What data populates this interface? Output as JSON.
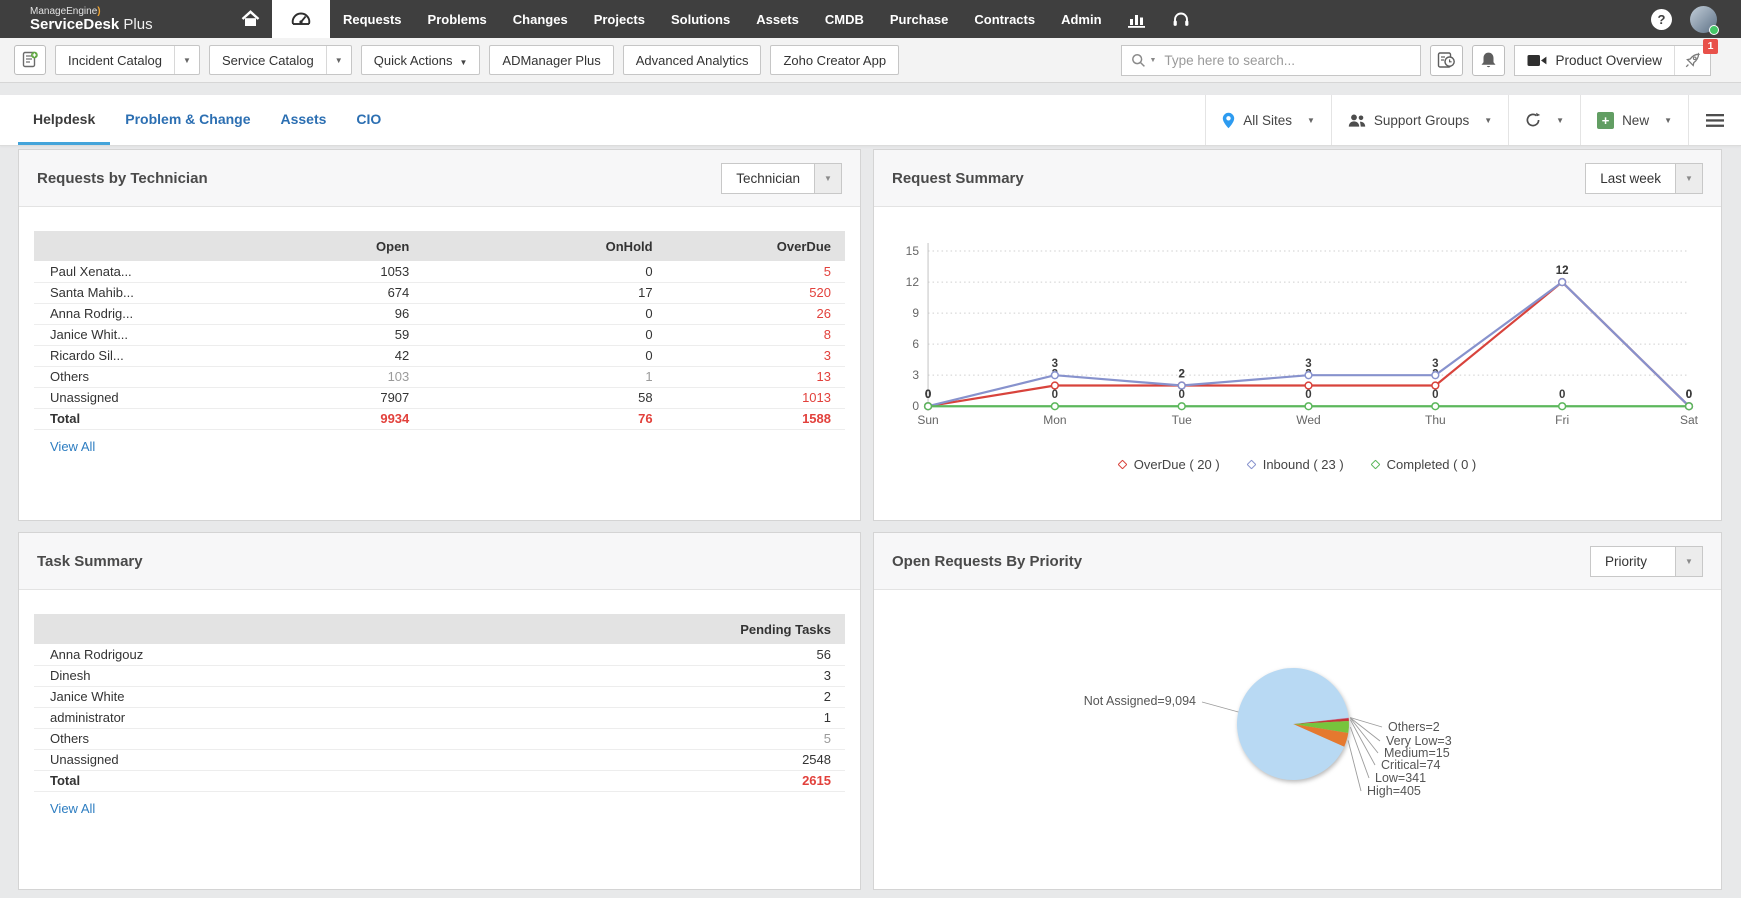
{
  "topnav": {
    "logo_manageengine": "ManageEngine",
    "logo_product_bold": "ServiceDesk",
    "logo_product_light": "Plus",
    "items": [
      "Requests",
      "Problems",
      "Changes",
      "Projects",
      "Solutions",
      "Assets",
      "CMDB",
      "Purchase",
      "Contracts",
      "Admin"
    ],
    "help_label": "?"
  },
  "toolbar": {
    "incident_catalog_label": "Incident Catalog",
    "service_catalog_label": "Service Catalog",
    "quick_actions_label": "Quick Actions",
    "admanager_label": "ADManager Plus",
    "advanced_analytics_label": "Advanced Analytics",
    "zoho_creator_label": "Zoho Creator App",
    "search_placeholder": "Type here to search...",
    "product_overview_label": "Product Overview",
    "notification_badge": "1"
  },
  "tabbar": {
    "tabs": [
      {
        "label": "Helpdesk",
        "active": true
      },
      {
        "label": "Problem & Change",
        "active": false
      },
      {
        "label": "Assets",
        "active": false
      },
      {
        "label": "CIO",
        "active": false
      }
    ],
    "all_sites_label": "All Sites",
    "support_groups_label": "Support Groups",
    "new_label": "New",
    "new_plus": "+"
  },
  "requests_by_technician": {
    "title": "Requests by Technician",
    "filter_value": "Technician",
    "columns": [
      "Open",
      "OnHold",
      "OverDue"
    ],
    "rows": [
      {
        "name": "Paul Xenata...",
        "open": "1053",
        "onhold": "0",
        "overdue": "5",
        "muted": false
      },
      {
        "name": "Santa Mahib...",
        "open": "674",
        "onhold": "17",
        "overdue": "520",
        "muted": false
      },
      {
        "name": "Anna Rodrig...",
        "open": "96",
        "onhold": "0",
        "overdue": "26",
        "muted": false
      },
      {
        "name": "Janice Whit...",
        "open": "59",
        "onhold": "0",
        "overdue": "8",
        "muted": false
      },
      {
        "name": "Ricardo Sil...",
        "open": "42",
        "onhold": "0",
        "overdue": "3",
        "muted": false
      },
      {
        "name": "Others",
        "open": "103",
        "onhold": "1",
        "overdue": "13",
        "muted": true
      },
      {
        "name": "Unassigned",
        "open": "7907",
        "onhold": "58",
        "overdue": "1013",
        "muted": false
      }
    ],
    "total_row": {
      "name": "Total",
      "open": "9934",
      "onhold": "76",
      "overdue": "1588"
    },
    "view_all_label": "View All"
  },
  "request_summary": {
    "title": "Request Summary",
    "filter_value": "Last week"
  },
  "task_summary": {
    "title": "Task Summary",
    "column": "Pending Tasks",
    "rows": [
      {
        "name": "Anna Rodrigouz",
        "value": "56",
        "muted": false
      },
      {
        "name": "Dinesh",
        "value": "3",
        "muted": false
      },
      {
        "name": "Janice White",
        "value": "2",
        "muted": false
      },
      {
        "name": "administrator",
        "value": "1",
        "muted": false
      },
      {
        "name": "Others",
        "value": "5",
        "muted": true
      },
      {
        "name": "Unassigned",
        "value": "2548",
        "muted": false
      }
    ],
    "total_row": {
      "name": "Total",
      "value": "2615"
    },
    "view_all_label": "View All"
  },
  "open_requests_by_priority": {
    "title": "Open Requests By Priority",
    "filter_value": "Priority"
  },
  "colors": {
    "topnav_bg": "#3f3f3f",
    "accent_blue": "#44a4da",
    "link_blue": "#2d7dc1",
    "alert_red": "#e2413c",
    "badge_red": "#e8514a"
  },
  "chart_data": [
    {
      "type": "line",
      "title": "Request Summary",
      "x": [
        "Sun",
        "Mon",
        "Tue",
        "Wed",
        "Thu",
        "Fri",
        "Sat"
      ],
      "series": [
        {
          "name": "OverDue",
          "total": 20,
          "color": "#d8433c",
          "values": [
            0,
            2,
            2,
            2,
            2,
            12,
            0
          ]
        },
        {
          "name": "Inbound",
          "total": 23,
          "color": "#8792cd",
          "values": [
            0,
            3,
            2,
            3,
            3,
            12,
            0
          ]
        },
        {
          "name": "Completed",
          "total": 0,
          "color": "#5cb75c",
          "values": [
            0,
            0,
            0,
            0,
            0,
            0,
            0
          ]
        }
      ],
      "ylim": [
        0,
        15
      ],
      "yticks": [
        0,
        3,
        6,
        9,
        12,
        15
      ],
      "grid": "horizontal-dotted",
      "legend_position": "bottom",
      "legend": [
        "OverDue ( 20 )",
        "Inbound ( 23 )",
        "Completed ( 0 )"
      ]
    },
    {
      "type": "pie",
      "title": "Open Requests By Priority",
      "slices": [
        {
          "label": "Others",
          "value": 2,
          "color": "#9b4f9b"
        },
        {
          "label": "Very Low",
          "value": 3,
          "color": "#e8c832"
        },
        {
          "label": "Medium",
          "value": 15,
          "color": "#d84a94"
        },
        {
          "label": "Critical",
          "value": 74,
          "color": "#c43636"
        },
        {
          "label": "Low",
          "value": 341,
          "color": "#77c43c"
        },
        {
          "label": "High",
          "value": 405,
          "color": "#e5792f"
        },
        {
          "label": "Not Assigned",
          "value": 9094,
          "color": "#b8d9f3"
        }
      ],
      "callouts": {
        "left": "Not Assigned=9,094",
        "right": [
          "Others=2",
          "Very Low=3",
          "Medium=15",
          "Critical=74",
          "Low=341",
          "High=405"
        ]
      },
      "start_angle_deg": -6.5,
      "legend_position": "none"
    }
  ]
}
